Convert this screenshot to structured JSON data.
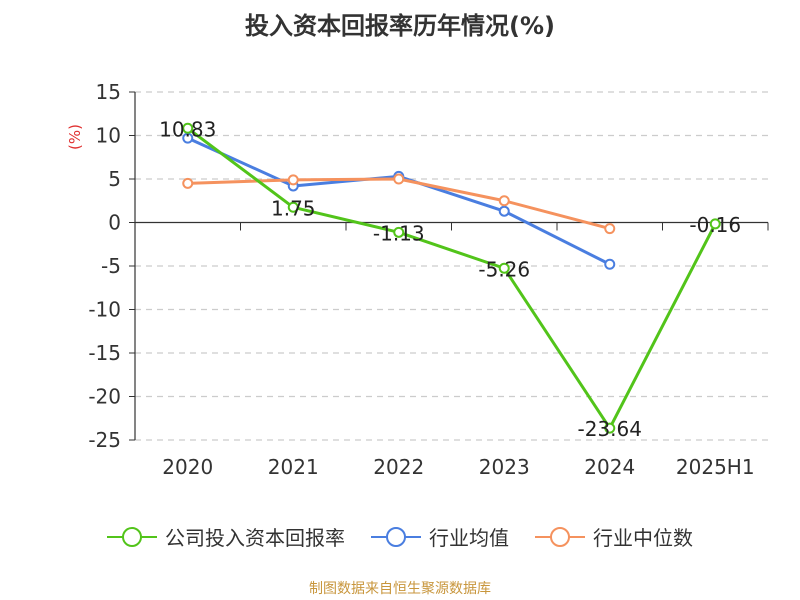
{
  "title": "投入资本回报率历年情况(%)",
  "unit_label": "(%)",
  "source": "制图数据来自恒生聚源数据库",
  "colors": {
    "company": "#52c41a",
    "industry_avg": "#4a7ee0",
    "industry_median": "#f5925e",
    "unit_label": "#e03030",
    "source": "#c8963c"
  },
  "chart_data": {
    "type": "line",
    "title": "投入资本回报率历年情况(%)",
    "xlabel": "",
    "ylabel": "(%)",
    "ylim": [
      -25,
      15
    ],
    "yticks": [
      15,
      10,
      5,
      0,
      -5,
      -10,
      -15,
      -20,
      -25
    ],
    "categories": [
      "2020",
      "2021",
      "2022",
      "2023",
      "2024",
      "2025H1"
    ],
    "grid": true,
    "legend_position": "bottom",
    "series": [
      {
        "name": "公司投入资本回报率",
        "color": "#52c41a",
        "values": [
          10.83,
          1.75,
          -1.13,
          -5.26,
          -23.64,
          -0.16
        ],
        "labels": [
          "10.83",
          "1.75",
          "-1.13",
          "-5.26",
          "-23.64",
          "-0.16"
        ]
      },
      {
        "name": "行业均值",
        "color": "#4a7ee0",
        "values": [
          9.7,
          4.2,
          5.3,
          1.3,
          -4.8,
          null
        ]
      },
      {
        "name": "行业中位数",
        "color": "#f5925e",
        "values": [
          4.5,
          4.9,
          5.0,
          2.5,
          -0.7,
          null
        ]
      }
    ]
  }
}
